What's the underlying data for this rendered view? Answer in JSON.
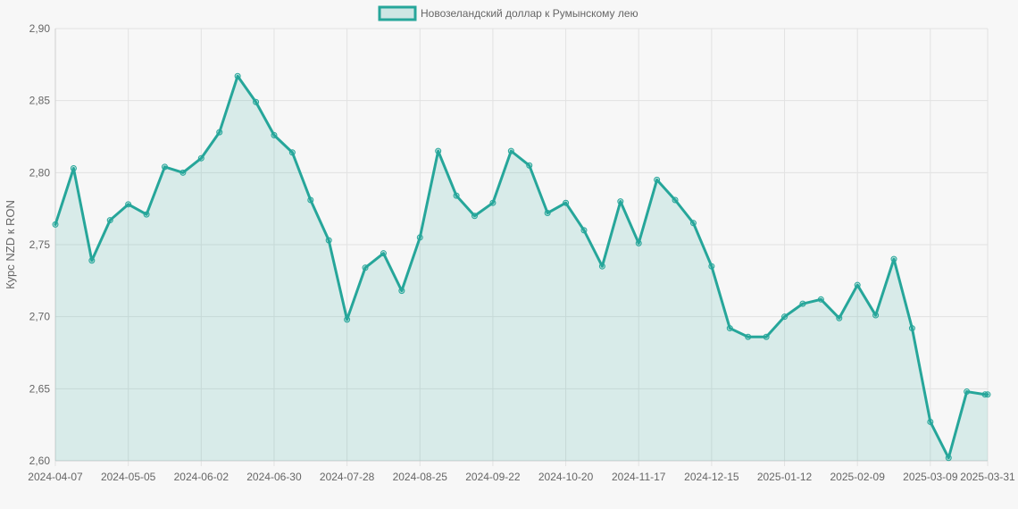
{
  "chart_data": {
    "type": "area",
    "ylabel": "Курс NZD к RON",
    "ylim": [
      2.6,
      2.9
    ],
    "y_ticks": [
      "2,90",
      "2,85",
      "2,80",
      "2,75",
      "2,70",
      "2,65",
      "2,60"
    ],
    "y_tick_values": [
      2.9,
      2.85,
      2.8,
      2.75,
      2.7,
      2.65,
      2.6
    ],
    "x_ticks": [
      "2024-04-07",
      "2024-05-05",
      "2024-06-02",
      "2024-06-30",
      "2024-07-28",
      "2024-08-25",
      "2024-09-22",
      "2024-10-20",
      "2024-11-17",
      "2024-12-15",
      "2025-01-12",
      "2025-02-09",
      "2025-03-09",
      "2025-03-31"
    ],
    "grid": true,
    "legend_position": "top",
    "series": [
      {
        "name": "Новозеландский доллар к Румынскому лею",
        "color": "#26a69a",
        "fill_color": "rgba(38,166,154,0.15)",
        "x": [
          "2024-04-07",
          "2024-04-14",
          "2024-04-21",
          "2024-04-28",
          "2024-05-05",
          "2024-05-12",
          "2024-05-19",
          "2024-05-26",
          "2024-06-02",
          "2024-06-09",
          "2024-06-16",
          "2024-06-23",
          "2024-06-30",
          "2024-07-07",
          "2024-07-14",
          "2024-07-21",
          "2024-07-28",
          "2024-08-04",
          "2024-08-11",
          "2024-08-18",
          "2024-08-25",
          "2024-09-01",
          "2024-09-08",
          "2024-09-15",
          "2024-09-22",
          "2024-09-29",
          "2024-10-06",
          "2024-10-13",
          "2024-10-20",
          "2024-10-27",
          "2024-11-03",
          "2024-11-10",
          "2024-11-17",
          "2024-11-24",
          "2024-12-01",
          "2024-12-08",
          "2024-12-15",
          "2024-12-22",
          "2024-12-29",
          "2025-01-05",
          "2025-01-12",
          "2025-01-19",
          "2025-01-26",
          "2025-02-02",
          "2025-02-09",
          "2025-02-16",
          "2025-02-23",
          "2025-03-02",
          "2025-03-09",
          "2025-03-16",
          "2025-03-23",
          "2025-03-30",
          "2025-03-31"
        ],
        "values": [
          2.764,
          2.803,
          2.739,
          2.767,
          2.778,
          2.771,
          2.804,
          2.8,
          2.81,
          2.828,
          2.867,
          2.849,
          2.826,
          2.814,
          2.781,
          2.753,
          2.698,
          2.734,
          2.744,
          2.718,
          2.755,
          2.815,
          2.784,
          2.77,
          2.779,
          2.815,
          2.805,
          2.772,
          2.779,
          2.76,
          2.735,
          2.78,
          2.751,
          2.795,
          2.781,
          2.765,
          2.735,
          2.692,
          2.686,
          2.686,
          2.7,
          2.709,
          2.712,
          2.699,
          2.722,
          2.701,
          2.74,
          2.692,
          2.627,
          2.602,
          2.648,
          2.646,
          2.646
        ]
      }
    ]
  }
}
